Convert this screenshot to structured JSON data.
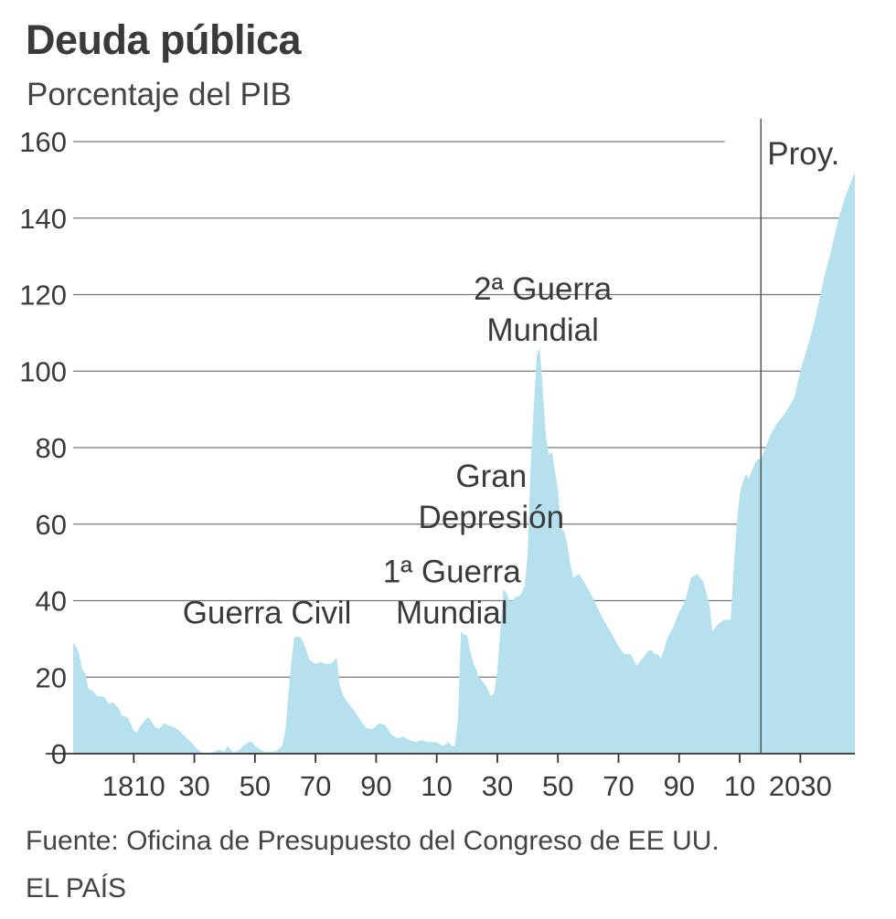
{
  "chart_data": {
    "type": "area",
    "title": "Deuda pública",
    "subtitle": "Porcentaje del PIB",
    "ylabel": "Porcentaje del PIB",
    "xlabel": "",
    "xlim": [
      1790,
      2048
    ],
    "ylim": [
      0,
      160
    ],
    "y_ticks": [
      0,
      20,
      40,
      60,
      80,
      100,
      120,
      140,
      160
    ],
    "x_ticks": [
      {
        "year": 1810,
        "label": "1810"
      },
      {
        "year": 1830,
        "label": "30"
      },
      {
        "year": 1850,
        "label": "50"
      },
      {
        "year": 1870,
        "label": "70"
      },
      {
        "year": 1890,
        "label": "90"
      },
      {
        "year": 1910,
        "label": "10"
      },
      {
        "year": 1930,
        "label": "30"
      },
      {
        "year": 1950,
        "label": "50"
      },
      {
        "year": 1970,
        "label": "70"
      },
      {
        "year": 1990,
        "label": "90"
      },
      {
        "year": 2010,
        "label": "10"
      },
      {
        "year": 2030,
        "label": "2030"
      }
    ],
    "grid": true,
    "fill_color": "#b5e0ee",
    "projection": {
      "year": 2017,
      "label": "Proy."
    },
    "annotations": [
      {
        "lines": [
          "Guerra Civil"
        ],
        "year": 1854,
        "value": 34
      },
      {
        "lines": [
          "1ª Guerra",
          "Mundial"
        ],
        "year": 1915,
        "value": 34
      },
      {
        "lines": [
          "Gran",
          "Depresión"
        ],
        "year": 1928,
        "value": 59
      },
      {
        "lines": [
          "2ª Guerra",
          "Mundial"
        ],
        "year": 1945,
        "value": 108
      }
    ],
    "series": [
      {
        "name": "Deuda pública",
        "x": [
          1790,
          1791,
          1792,
          1793,
          1794,
          1795,
          1797,
          1798,
          1800,
          1802,
          1803,
          1805,
          1806,
          1808,
          1810,
          1811,
          1812,
          1814,
          1815,
          1817,
          1818,
          1819,
          1820,
          1821,
          1823,
          1825,
          1827,
          1829,
          1830,
          1832,
          1833,
          1835,
          1836,
          1838,
          1840,
          1841,
          1842,
          1843,
          1845,
          1846,
          1848,
          1849,
          1850,
          1852,
          1853,
          1855,
          1856,
          1857,
          1859,
          1860,
          1861,
          1862,
          1863,
          1865,
          1866,
          1867,
          1868,
          1870,
          1872,
          1873,
          1875,
          1877,
          1878,
          1879,
          1880,
          1881,
          1883,
          1885,
          1887,
          1889,
          1891,
          1893,
          1895,
          1897,
          1899,
          1901,
          1903,
          1905,
          1907,
          1908,
          1910,
          1912,
          1914,
          1915,
          1916,
          1917,
          1918,
          1919,
          1920,
          1921,
          1922,
          1924,
          1926,
          1928,
          1929,
          1930,
          1931,
          1932,
          1933,
          1934,
          1935,
          1936,
          1937,
          1938,
          1939,
          1940,
          1941,
          1942,
          1943,
          1944,
          1945,
          1946,
          1947,
          1948,
          1949,
          1950,
          1951,
          1952,
          1953,
          1954,
          1955,
          1957,
          1960,
          1962,
          1965,
          1968,
          1970,
          1972,
          1974,
          1975,
          1976,
          1978,
          1980,
          1981,
          1982,
          1983,
          1984,
          1985,
          1986,
          1988,
          1990,
          1992,
          1994,
          1996,
          1998,
          2000,
          2001,
          2003,
          2005,
          2007,
          2008,
          2009,
          2010,
          2011,
          2012,
          2013,
          2014,
          2015,
          2016,
          2017,
          2018,
          2020,
          2022,
          2025,
          2028,
          2030,
          2033,
          2035,
          2038,
          2040,
          2043,
          2045,
          2048
        ],
        "values": [
          29,
          28,
          26,
          22,
          21,
          17,
          16,
          15,
          15,
          13,
          13.5,
          12,
          10,
          9.5,
          6,
          5.5,
          7,
          9,
          9.5,
          7,
          6.5,
          7,
          8,
          7.5,
          7,
          6,
          4.5,
          3,
          2,
          0.5,
          0.1,
          0.1,
          0.3,
          1,
          0.5,
          2,
          1,
          0.3,
          1,
          2,
          3,
          3,
          2,
          1,
          0.5,
          0.5,
          0.5,
          0.7,
          2,
          6,
          15,
          24,
          30.5,
          30.5,
          29,
          27,
          24.5,
          23.5,
          24,
          23.5,
          23.5,
          25,
          18,
          15.5,
          14,
          13,
          11,
          8.5,
          6.5,
          6.5,
          8,
          7.5,
          5,
          4,
          4.5,
          3.5,
          3,
          3.5,
          3,
          3,
          3,
          2,
          3,
          2,
          2,
          9,
          32,
          31,
          31,
          27,
          24,
          20,
          18,
          15,
          16,
          22,
          32,
          43,
          42,
          40,
          40,
          41,
          41,
          42,
          44,
          52,
          75,
          90,
          104,
          106,
          95,
          83,
          78,
          79,
          74,
          69,
          59,
          58,
          55,
          50,
          46,
          47,
          43,
          40,
          35,
          31,
          28,
          26,
          26,
          24.5,
          23,
          25,
          27,
          27,
          26,
          26,
          25,
          27,
          30,
          33,
          37,
          40,
          46,
          47,
          45,
          39,
          32,
          34,
          35,
          35,
          48,
          60,
          68,
          71,
          73,
          72,
          74,
          76,
          77,
          77,
          79,
          83,
          86,
          89,
          93,
          100,
          108,
          114,
          125,
          131,
          141,
          146,
          152
        ]
      }
    ]
  },
  "footer": {
    "source": "Fuente: Oficina de Presupuesto del Congreso de EE UU.",
    "brand": "EL PAÍS"
  }
}
